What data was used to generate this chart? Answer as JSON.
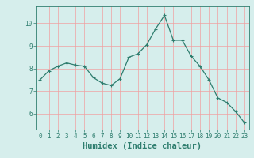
{
  "x": [
    0,
    1,
    2,
    3,
    4,
    5,
    6,
    7,
    8,
    9,
    10,
    11,
    12,
    13,
    14,
    15,
    16,
    17,
    18,
    19,
    20,
    21,
    22,
    23
  ],
  "y": [
    7.5,
    7.9,
    8.1,
    8.25,
    8.15,
    8.1,
    7.6,
    7.35,
    7.25,
    7.55,
    8.5,
    8.65,
    9.05,
    9.75,
    10.35,
    9.25,
    9.25,
    8.55,
    8.1,
    7.5,
    6.7,
    6.5,
    6.1,
    5.6
  ],
  "xlabel": "Humidex (Indice chaleur)",
  "xlim": [
    -0.5,
    23.5
  ],
  "ylim": [
    5.3,
    10.75
  ],
  "yticks": [
    6,
    7,
    8,
    9,
    10
  ],
  "xticks": [
    0,
    1,
    2,
    3,
    4,
    5,
    6,
    7,
    8,
    9,
    10,
    11,
    12,
    13,
    14,
    15,
    16,
    17,
    18,
    19,
    20,
    21,
    22,
    23
  ],
  "line_color": "#2e7d6e",
  "marker_color": "#2e7d6e",
  "bg_color": "#d6eeec",
  "grid_color": "#f0a0a0",
  "axis_color": "#2e7d6e",
  "tick_fontsize": 5.5,
  "xlabel_fontsize": 7.5
}
